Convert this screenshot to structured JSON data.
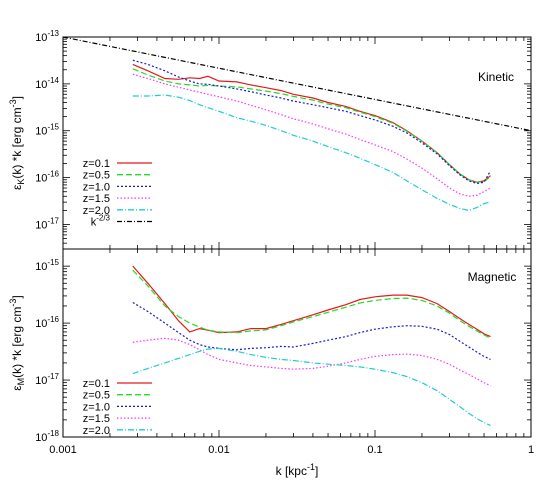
{
  "chart_data": [
    {
      "type": "line",
      "panel_label": "Kinetic",
      "xlabel": "k [kpc",
      "xlabel_sup": "-1",
      "xlabel_end": "]",
      "ylabel_parts": [
        "ε",
        "K",
        "(k) *k [erg cm",
        "-3",
        "]"
      ],
      "x_scale": "log",
      "y_scale": "log",
      "xlim": [
        0.001,
        1
      ],
      "ylim": [
        3e-18,
        1e-13
      ],
      "y_ticks": [
        {
          "m": "10",
          "e": "-13"
        },
        {
          "m": "10",
          "e": "-14"
        },
        {
          "m": "10",
          "e": "-15"
        },
        {
          "m": "10",
          "e": "-16"
        },
        {
          "m": "10",
          "e": "-17"
        }
      ],
      "y_tick_values": [
        1e-13,
        1e-14,
        1e-15,
        1e-16,
        1e-17
      ],
      "legend_position": "bottom-left",
      "series": [
        {
          "name": "z=0.1",
          "color": "#e41a1c",
          "dash": "",
          "x": [
            0.0028,
            0.0035,
            0.0045,
            0.0055,
            0.0065,
            0.0075,
            0.0085,
            0.01,
            0.013,
            0.016,
            0.02,
            0.025,
            0.03,
            0.04,
            0.05,
            0.065,
            0.08,
            0.1,
            0.13,
            0.16,
            0.2,
            0.25,
            0.3,
            0.35,
            0.4,
            0.45,
            0.5,
            0.55
          ],
          "y": [
            2.6e-14,
            1.9e-14,
            1.3e-14,
            1.25e-14,
            1.35e-14,
            1.3e-14,
            1.45e-14,
            1.15e-14,
            1.1e-14,
            9.5e-15,
            8.3e-15,
            7.2e-15,
            6e-15,
            5e-15,
            4e-15,
            3.3e-15,
            2.6e-15,
            2.1e-15,
            1.5e-15,
            1e-15,
            6e-16,
            3.4e-16,
            1.9e-16,
            1.2e-16,
            9e-17,
            8e-17,
            8.5e-17,
            1.1e-16
          ]
        },
        {
          "name": "z=0.5",
          "color": "#22dd22",
          "dash": "6,3",
          "x": [
            0.0028,
            0.0035,
            0.0045,
            0.0055,
            0.0065,
            0.0075,
            0.0085,
            0.01,
            0.013,
            0.016,
            0.02,
            0.025,
            0.03,
            0.04,
            0.05,
            0.065,
            0.08,
            0.1,
            0.13,
            0.16,
            0.2,
            0.25,
            0.3,
            0.35,
            0.4,
            0.45,
            0.5,
            0.55
          ],
          "y": [
            2.1e-14,
            1.55e-14,
            1.15e-14,
            1e-14,
            9.5e-15,
            9e-15,
            9.3e-15,
            9e-15,
            8.6e-15,
            7.8e-15,
            7e-15,
            6.2e-15,
            5.4e-15,
            4.5e-15,
            3.7e-15,
            3.1e-15,
            2.5e-15,
            2e-15,
            1.45e-15,
            9.8e-16,
            6e-16,
            3.4e-16,
            1.9e-16,
            1.2e-16,
            9e-17,
            8e-17,
            8.2e-17,
            1.05e-16
          ]
        },
        {
          "name": "z=1.0",
          "color": "#1a1acc",
          "dash": "2,2",
          "x": [
            0.0028,
            0.0035,
            0.0045,
            0.0055,
            0.0065,
            0.0075,
            0.0085,
            0.01,
            0.013,
            0.016,
            0.02,
            0.025,
            0.03,
            0.04,
            0.05,
            0.065,
            0.08,
            0.1,
            0.13,
            0.16,
            0.2,
            0.25,
            0.3,
            0.35,
            0.4,
            0.45,
            0.5,
            0.55
          ],
          "y": [
            3.2e-14,
            2.6e-14,
            1.9e-14,
            1.4e-14,
            1.15e-14,
            1e-14,
            9.8e-15,
            9e-15,
            7.8e-15,
            6.8e-15,
            5.8e-15,
            5e-15,
            4.3e-15,
            3.6e-15,
            3.1e-15,
            2.6e-15,
            2.1e-15,
            1.7e-15,
            1.25e-15,
            9e-16,
            5.5e-16,
            3.2e-16,
            1.8e-16,
            1.15e-16,
            8.5e-17,
            7.5e-17,
            8e-17,
            1.4e-16
          ]
        },
        {
          "name": "z=1.5",
          "color": "#ff33ff",
          "dash": "1.5,2",
          "x": [
            0.0028,
            0.0035,
            0.0045,
            0.0055,
            0.0065,
            0.0075,
            0.0085,
            0.01,
            0.013,
            0.016,
            0.02,
            0.025,
            0.03,
            0.04,
            0.05,
            0.065,
            0.08,
            0.1,
            0.13,
            0.16,
            0.2,
            0.25,
            0.3,
            0.35,
            0.4,
            0.45,
            0.5,
            0.55
          ],
          "y": [
            1.6e-14,
            1.3e-14,
            1e-14,
            8.5e-15,
            7.4e-15,
            6.6e-15,
            6e-15,
            5.3e-15,
            4.3e-15,
            3.5e-15,
            2.8e-15,
            2.2e-15,
            1.8e-15,
            1.4e-15,
            1.1e-15,
            8.5e-16,
            6.5e-16,
            5e-16,
            3.6e-16,
            2.5e-16,
            1.6e-16,
            9.5e-17,
            6e-17,
            4.5e-17,
            4e-17,
            4.2e-17,
            5e-17,
            6e-17
          ]
        },
        {
          "name": "z=2.0",
          "color": "#22cccc",
          "dash": "6,2,1,2",
          "x": [
            0.0028,
            0.0035,
            0.0045,
            0.0055,
            0.0065,
            0.0075,
            0.0085,
            0.01,
            0.013,
            0.016,
            0.02,
            0.025,
            0.03,
            0.04,
            0.05,
            0.065,
            0.08,
            0.1,
            0.13,
            0.16,
            0.2,
            0.25,
            0.3,
            0.35,
            0.4,
            0.45,
            0.5,
            0.55
          ],
          "y": [
            5.5e-15,
            5.5e-15,
            5.8e-15,
            5.2e-15,
            4.4e-15,
            3.6e-15,
            3.1e-15,
            2.6e-15,
            1.9e-15,
            1.6e-15,
            1.3e-15,
            1e-15,
            8e-16,
            6e-16,
            4.6e-16,
            3.4e-16,
            2.6e-16,
            1.9e-16,
            1.3e-16,
            8.5e-17,
            5.5e-17,
            3.6e-17,
            2.7e-17,
            2.2e-17,
            2e-17,
            2.3e-17,
            2.8e-17,
            3e-17
          ]
        },
        {
          "name": "k",
          "name_sup": "-2/3",
          "color": "#000000",
          "dash": "5,2,1,2",
          "x": [
            0.001,
            1
          ],
          "y": [
            1e-13,
            1e-15
          ]
        }
      ]
    },
    {
      "type": "line",
      "panel_label": "Magnetic",
      "xlabel": "k [kpc",
      "xlabel_sup": "-1",
      "xlabel_end": "]",
      "ylabel_parts": [
        "ε",
        "M",
        "(k) *k [erg cm",
        "-3",
        "]"
      ],
      "x_scale": "log",
      "y_scale": "log",
      "xlim": [
        0.001,
        1
      ],
      "ylim": [
        1e-18,
        2e-15
      ],
      "x_ticks": [
        "0.001",
        "0.01",
        "0.1",
        "1"
      ],
      "x_tick_values": [
        0.001,
        0.01,
        0.1,
        1
      ],
      "y_ticks": [
        {
          "m": "10",
          "e": "-15"
        },
        {
          "m": "10",
          "e": "-16"
        },
        {
          "m": "10",
          "e": "-17"
        },
        {
          "m": "10",
          "e": "-18"
        }
      ],
      "y_tick_values": [
        1e-15,
        1e-16,
        1e-17,
        1e-18
      ],
      "legend_position": "bottom-left",
      "series": [
        {
          "name": "z=0.1",
          "color": "#e41a1c",
          "dash": "",
          "x": [
            0.0028,
            0.0035,
            0.0045,
            0.0055,
            0.0065,
            0.0075,
            0.0085,
            0.01,
            0.013,
            0.016,
            0.02,
            0.025,
            0.03,
            0.04,
            0.05,
            0.065,
            0.08,
            0.1,
            0.13,
            0.16,
            0.2,
            0.25,
            0.3,
            0.35,
            0.4,
            0.45,
            0.5,
            0.55
          ],
          "y": [
            1e-15,
            5e-16,
            2.2e-16,
            1.1e-16,
            7e-17,
            8e-17,
            7.5e-17,
            6.8e-17,
            7e-17,
            8e-17,
            8e-17,
            9.5e-17,
            1.1e-16,
            1.4e-16,
            1.7e-16,
            2.1e-16,
            2.6e-16,
            2.9e-16,
            3.1e-16,
            3.1e-16,
            2.8e-16,
            2.2e-16,
            1.6e-16,
            1.2e-16,
            9.5e-17,
            7.8e-17,
            6.5e-17,
            5.8e-17
          ]
        },
        {
          "name": "z=0.5",
          "color": "#22dd22",
          "dash": "6,3",
          "x": [
            0.0028,
            0.0035,
            0.0045,
            0.0055,
            0.0065,
            0.0075,
            0.0085,
            0.01,
            0.013,
            0.016,
            0.02,
            0.025,
            0.03,
            0.04,
            0.05,
            0.065,
            0.08,
            0.1,
            0.13,
            0.16,
            0.2,
            0.25,
            0.3,
            0.35,
            0.4,
            0.45,
            0.5,
            0.55
          ],
          "y": [
            8.5e-16,
            4.5e-16,
            2e-16,
            1.3e-16,
            1e-16,
            8.5e-17,
            7.5e-17,
            7e-17,
            6.8e-17,
            7.3e-17,
            7.6e-17,
            9e-17,
            1.05e-16,
            1.3e-16,
            1.55e-16,
            1.9e-16,
            2.25e-16,
            2.5e-16,
            2.7e-16,
            2.75e-16,
            2.5e-16,
            2e-16,
            1.5e-16,
            1.1e-16,
            8.8e-17,
            7.3e-17,
            6.2e-17,
            5.4e-17
          ]
        },
        {
          "name": "z=1.0",
          "color": "#1a1acc",
          "dash": "2,2",
          "x": [
            0.0028,
            0.0035,
            0.0045,
            0.0055,
            0.0065,
            0.0075,
            0.0085,
            0.01,
            0.013,
            0.016,
            0.02,
            0.025,
            0.03,
            0.04,
            0.05,
            0.065,
            0.08,
            0.1,
            0.13,
            0.16,
            0.2,
            0.25,
            0.3,
            0.35,
            0.4,
            0.45,
            0.5,
            0.55
          ],
          "y": [
            2.3e-16,
            1.6e-16,
            1e-16,
            6.8e-17,
            5e-17,
            4.2e-17,
            3.8e-17,
            3.6e-17,
            3.4e-17,
            3.6e-17,
            3.7e-17,
            3.9e-17,
            3.8e-17,
            4.4e-17,
            5e-17,
            5.8e-17,
            6.8e-17,
            7.8e-17,
            8.6e-17,
            9e-17,
            8.8e-17,
            7.8e-17,
            6.3e-17,
            4.8e-17,
            3.8e-17,
            3.1e-17,
            2.6e-17,
            2.3e-17
          ]
        },
        {
          "name": "z=1.5",
          "color": "#ff33ff",
          "dash": "1.5,2",
          "x": [
            0.0028,
            0.0035,
            0.0045,
            0.0055,
            0.0065,
            0.0075,
            0.0085,
            0.01,
            0.013,
            0.016,
            0.02,
            0.025,
            0.03,
            0.04,
            0.05,
            0.065,
            0.08,
            0.1,
            0.13,
            0.16,
            0.2,
            0.25,
            0.3,
            0.35,
            0.4,
            0.45,
            0.5,
            0.55
          ],
          "y": [
            4.6e-17,
            5e-17,
            5.4e-17,
            5e-17,
            4.2e-17,
            3.4e-17,
            2.8e-17,
            2.3e-17,
            2e-17,
            1.8e-17,
            1.7e-17,
            1.6e-17,
            1.55e-17,
            1.6e-17,
            1.75e-17,
            2e-17,
            2.3e-17,
            2.6e-17,
            2.8e-17,
            2.85e-17,
            2.7e-17,
            2.3e-17,
            1.9e-17,
            1.5e-17,
            1.25e-17,
            1.05e-17,
            9e-18,
            8e-18
          ]
        },
        {
          "name": "z=2.0",
          "color": "#22cccc",
          "dash": "6,2,1,2",
          "x": [
            0.0028,
            0.0035,
            0.0045,
            0.0055,
            0.0065,
            0.0075,
            0.0085,
            0.01,
            0.013,
            0.016,
            0.02,
            0.025,
            0.03,
            0.04,
            0.05,
            0.065,
            0.08,
            0.1,
            0.13,
            0.16,
            0.2,
            0.25,
            0.3,
            0.35,
            0.4,
            0.45,
            0.5,
            0.55
          ],
          "y": [
            1.3e-17,
            1.6e-17,
            2e-17,
            2.4e-17,
            2.8e-17,
            3.2e-17,
            3.5e-17,
            3.6e-17,
            3.2e-17,
            2.8e-17,
            2.5e-17,
            2.3e-17,
            2.2e-17,
            2e-17,
            1.9e-17,
            1.8e-17,
            1.7e-17,
            1.55e-17,
            1.35e-17,
            1.15e-17,
            9e-18,
            6.5e-18,
            4.6e-18,
            3.4e-18,
            2.6e-18,
            2.1e-18,
            1.8e-18,
            1.6e-18
          ]
        }
      ]
    }
  ]
}
